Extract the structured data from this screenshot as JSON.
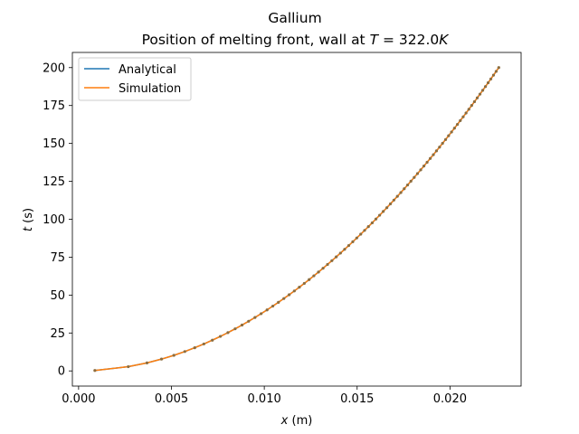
{
  "chart_data": {
    "type": "line",
    "title": "Gallium",
    "subtitle_prefix": "Position of melting front, wall at ",
    "subtitle_var": "T",
    "subtitle_eq": " = ",
    "subtitle_value": "322.0",
    "subtitle_unit": "K",
    "xlabel_var": "x",
    "xlabel_unit": " (m)",
    "ylabel_var": "t",
    "ylabel_unit": " (s)",
    "xlim": [
      -0.000335,
      0.02383
    ],
    "ylim": [
      -10,
      210
    ],
    "xticks": [
      0.0,
      0.005,
      0.01,
      0.015,
      0.02
    ],
    "xtick_labels": [
      "0.000",
      "0.005",
      "0.010",
      "0.015",
      "0.020"
    ],
    "yticks": [
      0,
      25,
      50,
      75,
      100,
      125,
      150,
      175,
      200
    ],
    "ytick_labels": [
      "0",
      "25",
      "50",
      "75",
      "100",
      "125",
      "150",
      "175",
      "200"
    ],
    "legend_position": "top-left",
    "series": [
      {
        "name": "Analytical",
        "color": "#1f77b4",
        "model": "t = (x / 0.00160)^2",
        "t_range": [
          0.3,
          200
        ],
        "points": 81
      },
      {
        "name": "Simulation",
        "color": "#ff7f0e",
        "model": "t = (x / 0.00160)^2",
        "t_range": [
          0.3,
          200
        ],
        "points": 81,
        "style": "solid line with dot markers"
      }
    ]
  }
}
